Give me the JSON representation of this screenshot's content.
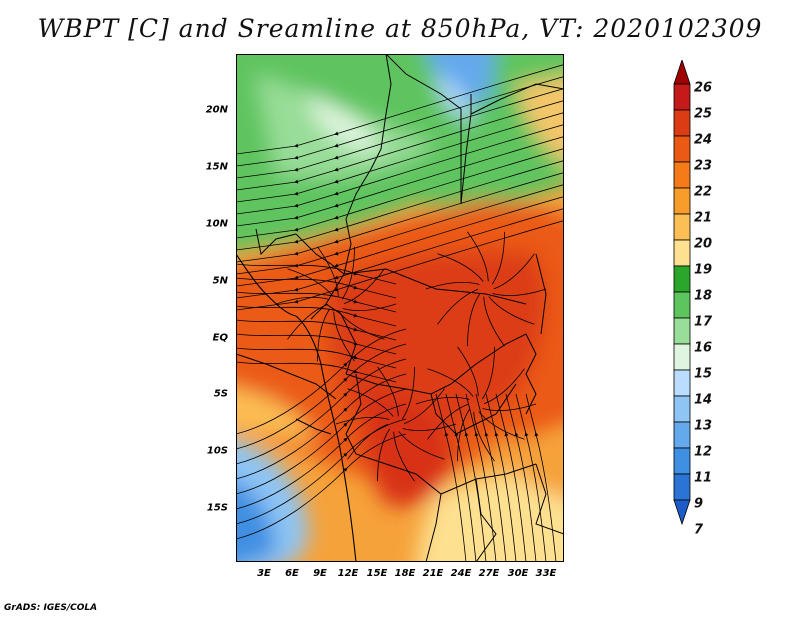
{
  "title": "WBPT [C] and Sreamline at 850hPa, VT: 2020102309",
  "map": {
    "variable": "WBPT",
    "units": "C",
    "level": "850hPa",
    "valid_time": "2020102309",
    "lat_labels": [
      "20N",
      "15N",
      "10N",
      "5N",
      "EQ",
      "5S",
      "10S",
      "15S"
    ],
    "lon_labels": [
      "3E",
      "6E",
      "9E",
      "12E",
      "15E",
      "18E",
      "21E",
      "24E",
      "27E",
      "30E",
      "33E"
    ]
  },
  "colorbar": {
    "labels": [
      "26",
      "25",
      "24",
      "23",
      "22",
      "21",
      "20",
      "19",
      "18",
      "17",
      "16",
      "15",
      "14",
      "13",
      "12",
      "11",
      "9",
      "7"
    ],
    "colors": [
      "#a00000",
      "#c41a1a",
      "#dc3c14",
      "#eb5a14",
      "#f47a1a",
      "#f89c2c",
      "#fbbf55",
      "#fde090",
      "#2aa72a",
      "#5ec45e",
      "#98dd98",
      "#dff5df",
      "#b9dcff",
      "#8ec5f5",
      "#63a9ec",
      "#3f8fe2",
      "#2a74d6",
      "#1d5cc8"
    ]
  },
  "footer": "GrADS: IGES/COLA"
}
